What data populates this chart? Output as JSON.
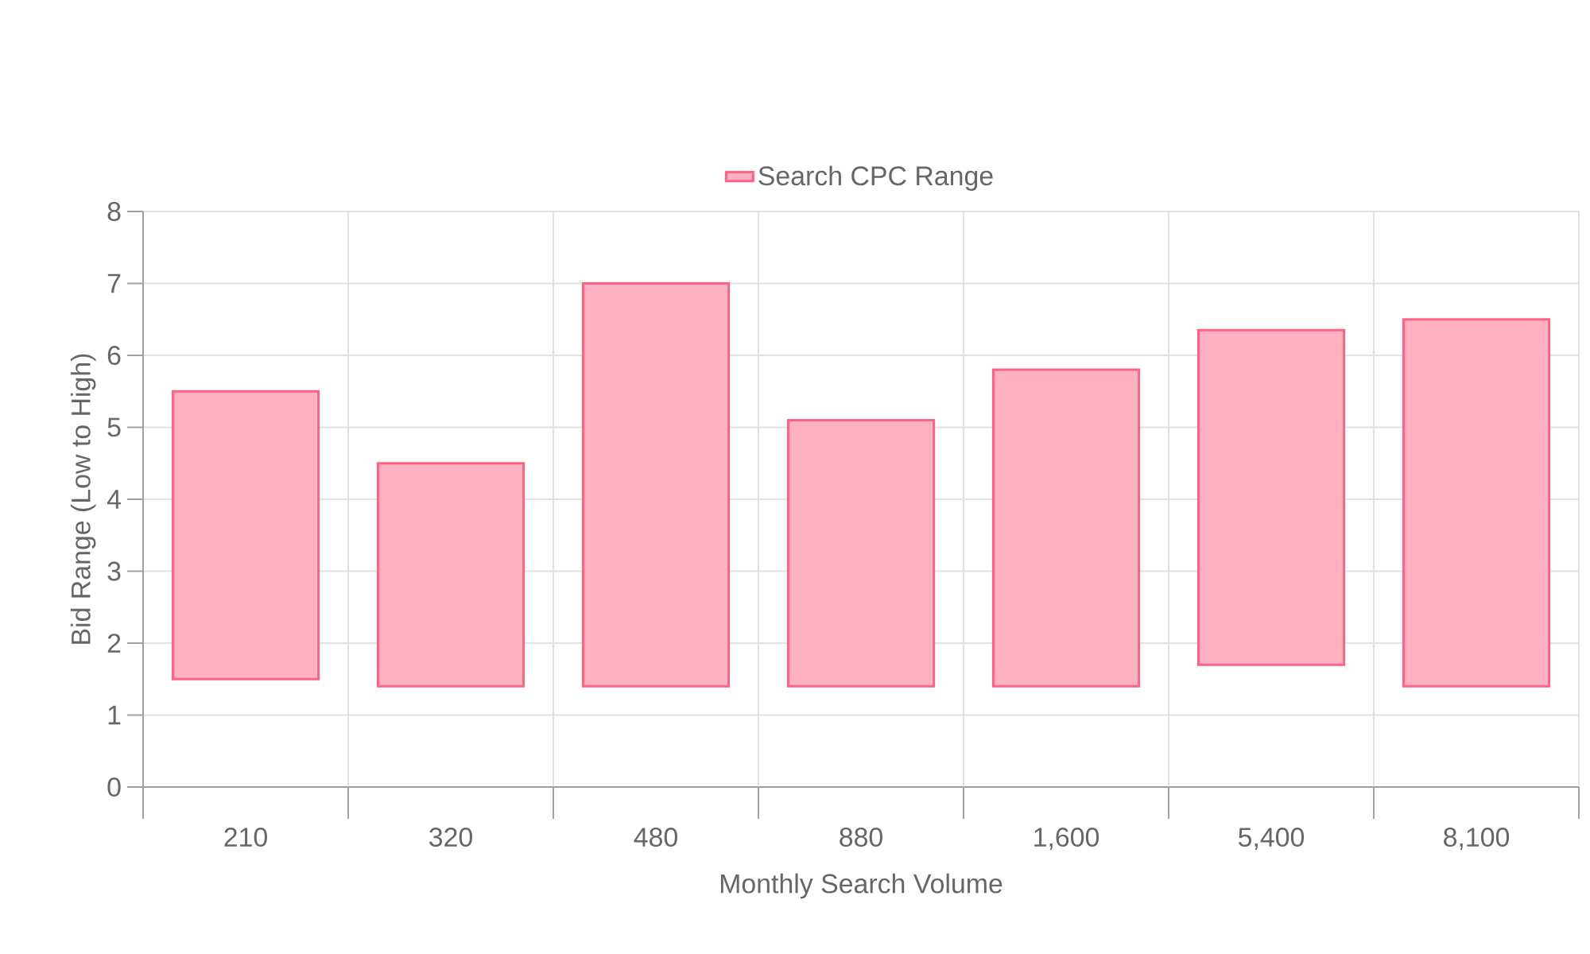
{
  "chart_data": {
    "type": "bar",
    "xlabel": "Monthly Search Volume",
    "ylabel": "Bid Range (Low to High)",
    "categories": [
      "210",
      "320",
      "480",
      "880",
      "1,600",
      "5,400",
      "8,100"
    ],
    "series": [
      {
        "name": "Search CPC Range",
        "color": "#ff6384",
        "values": [
          4.0,
          3.1,
          5.6,
          3.7,
          4.4,
          4.65,
          5.1
        ],
        "base": [
          1.5,
          1.4,
          1.4,
          1.4,
          1.4,
          1.7,
          1.4
        ]
      }
    ],
    "ylim": [
      0,
      8
    ],
    "yticks": [
      0,
      1,
      2,
      3,
      4,
      5,
      6,
      7,
      8
    ],
    "grid": true,
    "legend": "top"
  }
}
